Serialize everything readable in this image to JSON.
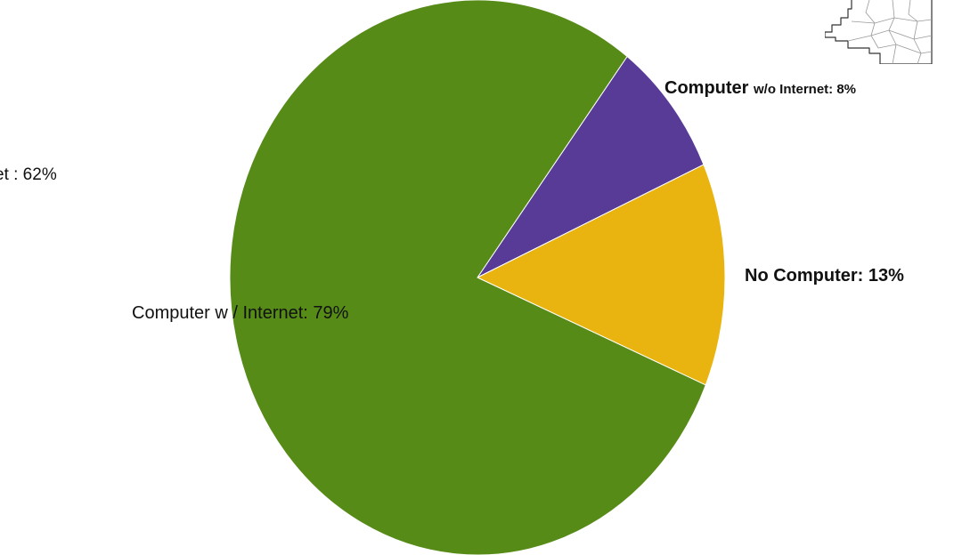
{
  "chart_data": {
    "type": "pie",
    "slices": [
      {
        "label": "Computer w / Internet",
        "value": 79,
        "color": "#558b16"
      },
      {
        "label": "Computer w/o Internet",
        "value": 8,
        "color": "#573b96"
      },
      {
        "label": "No Computer",
        "value": 13,
        "color": "#e9b40f"
      }
    ],
    "labels": {
      "green": "Computer w / Internet: 79%",
      "purple_main": "Computer ",
      "purple_rest": "w/o Internet: 8%",
      "yellow": "No Computer: 13%",
      "cutoff": "et : 62%"
    }
  },
  "map": {
    "icon": "region-outline-map-icon"
  }
}
